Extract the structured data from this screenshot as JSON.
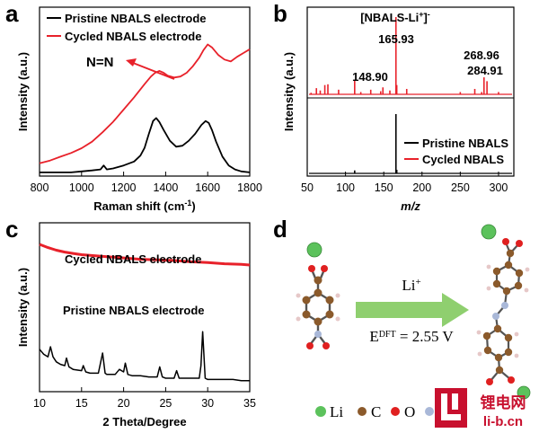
{
  "panels": {
    "a": "a",
    "b": "b",
    "c": "c",
    "d": "d"
  },
  "chart_data": [
    {
      "id": "a",
      "type": "line",
      "xlabel": "Raman shift (cm",
      "xlabel_sup": "-1",
      "xlabel_close": ")",
      "ylabel": "Intensity (a.u.)",
      "xlim": [
        800,
        1800
      ],
      "xticks": [
        "800",
        "1000",
        "1200",
        "1400",
        "1600",
        "1800"
      ],
      "yticks": false,
      "legend_placement": "top-left",
      "annotation": "N=N",
      "series": [
        {
          "name": "Pristine NBALS electrode",
          "color": "#000000",
          "x": [
            800,
            850,
            900,
            950,
            1000,
            1050,
            1090,
            1105,
            1120,
            1150,
            1200,
            1250,
            1280,
            1300,
            1320,
            1340,
            1355,
            1370,
            1390,
            1420,
            1450,
            1480,
            1510,
            1540,
            1570,
            1590,
            1605,
            1620,
            1640,
            1670,
            1700,
            1730,
            1760,
            1800
          ],
          "y": [
            0.01,
            0.01,
            0.01,
            0.01,
            0.02,
            0.03,
            0.04,
            0.08,
            0.04,
            0.05,
            0.08,
            0.12,
            0.18,
            0.26,
            0.4,
            0.53,
            0.56,
            0.52,
            0.44,
            0.33,
            0.27,
            0.28,
            0.33,
            0.4,
            0.49,
            0.53,
            0.51,
            0.44,
            0.32,
            0.17,
            0.08,
            0.04,
            0.02,
            0.01
          ]
        },
        {
          "name": "Cycled NBALS electrode",
          "color": "#e8212a",
          "x": [
            800,
            850,
            900,
            950,
            1000,
            1050,
            1100,
            1150,
            1200,
            1250,
            1300,
            1330,
            1350,
            1370,
            1390,
            1410,
            1440,
            1470,
            1500,
            1530,
            1560,
            1580,
            1600,
            1620,
            1650,
            1680,
            1710,
            1740,
            1770,
            1800
          ],
          "y": [
            0.04,
            0.07,
            0.11,
            0.15,
            0.2,
            0.27,
            0.37,
            0.48,
            0.61,
            0.74,
            0.88,
            0.96,
            1.0,
            1.02,
            1.0,
            0.97,
            0.95,
            0.96,
            1.0,
            1.07,
            1.16,
            1.24,
            1.3,
            1.27,
            1.19,
            1.14,
            1.12,
            1.17,
            1.21,
            1.25
          ]
        }
      ]
    },
    {
      "id": "b",
      "type": "bar",
      "xlabel": "m/z",
      "ylabel": "Intensity (a.u.)",
      "xlim": [
        50,
        320
      ],
      "xticks": [
        "50",
        "100",
        "150",
        "200",
        "250",
        "300"
      ],
      "yticks": false,
      "legend_placement": "bottom-right",
      "annotations": {
        "ion_label": "[NBALS-Li",
        "ion_sup": "+",
        "ion_close": "]",
        "ion_minus": "-",
        "peak_main": "165.93",
        "peak_left": "148.90",
        "peak_right1": "268.96",
        "peak_right2": "284.91"
      },
      "series": [
        {
          "name": "Cycled NBALS",
          "color": "#e8212a",
          "x": [
            55,
            62,
            67,
            73,
            77,
            91,
            112,
            120,
            133,
            146,
            148.9,
            158,
            165.93,
            167,
            180,
            250,
            268.96,
            278,
            281,
            284.91,
            300
          ],
          "y": [
            0.02,
            0.08,
            0.05,
            0.12,
            0.13,
            0.06,
            0.19,
            0.03,
            0.06,
            0.04,
            0.09,
            0.05,
            1.0,
            0.12,
            0.07,
            0.03,
            0.07,
            0.03,
            0.22,
            0.17,
            0.03
          ]
        },
        {
          "name": "Pristine NBALS",
          "color": "#000000",
          "x": [
            112,
            165.93,
            167
          ],
          "y": [
            0.05,
            1.0,
            0.06
          ]
        }
      ]
    },
    {
      "id": "c",
      "type": "line",
      "xlabel": "2 Theta/Degree",
      "ylabel": "Intensity (a.u.)",
      "xlim": [
        10,
        35
      ],
      "xticks": [
        "10",
        "15",
        "20",
        "25",
        "30",
        "35"
      ],
      "yticks": false,
      "series": [
        {
          "name": "Cycled NBALS electrode",
          "color": "#e8212a",
          "x": [
            10,
            11,
            12,
            13,
            14,
            15,
            16,
            18,
            20,
            22,
            24,
            26,
            28,
            30,
            32,
            34,
            35
          ],
          "y": [
            1.0,
            0.95,
            0.91,
            0.88,
            0.86,
            0.84,
            0.83,
            0.81,
            0.79,
            0.77,
            0.76,
            0.75,
            0.73,
            0.72,
            0.7,
            0.69,
            0.68
          ]
        },
        {
          "name": "Pristine NBALS electrode",
          "color": "#000000",
          "x": [
            10,
            10.5,
            11,
            11.3,
            11.6,
            12,
            12.5,
            13,
            13.2,
            13.5,
            14,
            15,
            15.2,
            15.5,
            16,
            17,
            17.5,
            17.8,
            18,
            19,
            19.5,
            20,
            20.2,
            20.5,
            21,
            22,
            23,
            24,
            24.3,
            24.6,
            25,
            26,
            26.3,
            26.6,
            27,
            28,
            29,
            29.2,
            29.4,
            29.7,
            30,
            31,
            32,
            33,
            34,
            35
          ],
          "y": [
            0.28,
            0.24,
            0.22,
            0.3,
            0.22,
            0.18,
            0.16,
            0.15,
            0.21,
            0.14,
            0.12,
            0.11,
            0.15,
            0.1,
            0.09,
            0.09,
            0.25,
            0.09,
            0.08,
            0.08,
            0.12,
            0.1,
            0.17,
            0.08,
            0.07,
            0.07,
            0.06,
            0.06,
            0.14,
            0.06,
            0.05,
            0.05,
            0.11,
            0.05,
            0.05,
            0.05,
            0.05,
            0.15,
            0.42,
            0.05,
            0.04,
            0.04,
            0.04,
            0.04,
            0.03,
            0.03
          ]
        }
      ]
    }
  ],
  "panel_d": {
    "reagent": "Li",
    "reagent_sup": "+",
    "energy_prefix": "E",
    "energy_sup": "DFT",
    "energy_value": " = 2.55 V",
    "legend": [
      {
        "label": "Li",
        "color": "#5cc25c"
      },
      {
        "label": "C",
        "color": "#8b5a2b"
      },
      {
        "label": "O",
        "color": "#e02020"
      },
      {
        "label": "N",
        "color": "#a9b8d8"
      }
    ],
    "arrow_color": "#8fcf6f"
  },
  "watermark": {
    "text_cn": "锂电网",
    "text_url": "li-b.cn"
  }
}
